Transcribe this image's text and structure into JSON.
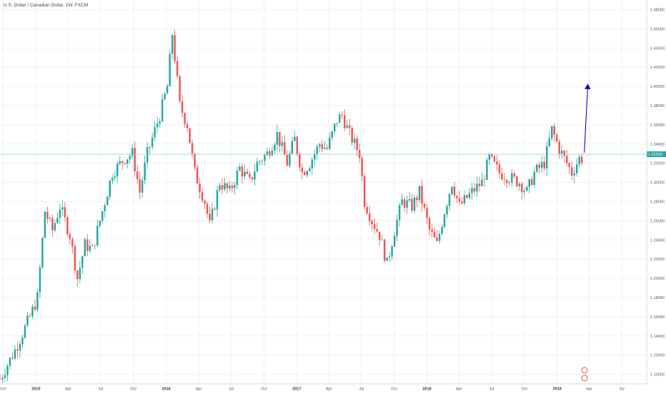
{
  "chart_data": {
    "type": "candlestick",
    "title": "U.S. Dollar / Canadian Dollar, 1W, FXCM",
    "last_price_label": "1.32930",
    "last_price": 1.3293,
    "ylim": [
      1.09,
      1.49
    ],
    "y_ticks": [
      1.1,
      1.12,
      1.14,
      1.16,
      1.18,
      1.2,
      1.22,
      1.24,
      1.26,
      1.28,
      1.3,
      1.32,
      1.34,
      1.36,
      1.38,
      1.4,
      1.42,
      1.44,
      1.46,
      1.48
    ],
    "y_tick_labels": [
      "1.10000",
      "1.12000",
      "1.14000",
      "1.16000",
      "1.18000",
      "1.20000",
      "1.22000",
      "1.24000",
      "1.26000",
      "1.28000",
      "1.30000",
      "1.32000",
      "1.34000",
      "1.36000",
      "1.38000",
      "1.40000",
      "1.42000",
      "1.44000",
      "1.46000",
      "1.48000"
    ],
    "x_ticks": [
      {
        "label": "Oct",
        "date": "2014-10-01"
      },
      {
        "label": "2015",
        "date": "2015-01-01"
      },
      {
        "label": "Apr",
        "date": "2015-04-01"
      },
      {
        "label": "Jul",
        "date": "2015-07-01"
      },
      {
        "label": "Oct",
        "date": "2015-10-01"
      },
      {
        "label": "2016",
        "date": "2016-01-01"
      },
      {
        "label": "Apr",
        "date": "2016-04-01"
      },
      {
        "label": "Jul",
        "date": "2016-07-01"
      },
      {
        "label": "Oct",
        "date": "2016-10-01"
      },
      {
        "label": "2017",
        "date": "2017-01-01"
      },
      {
        "label": "Apr",
        "date": "2017-04-01"
      },
      {
        "label": "Jul",
        "date": "2017-07-01"
      },
      {
        "label": "Oct",
        "date": "2017-10-01"
      },
      {
        "label": "2018",
        "date": "2018-01-01"
      },
      {
        "label": "Apr",
        "date": "2018-04-01"
      },
      {
        "label": "Jul",
        "date": "2018-07-01"
      },
      {
        "label": "Oct",
        "date": "2018-10-01"
      },
      {
        "label": "2019",
        "date": "2019-01-01"
      },
      {
        "label": "Apr",
        "date": "2019-04-01"
      },
      {
        "label": "Jul",
        "date": "2019-07-01"
      }
    ],
    "xlim": [
      "2014-09-22",
      "2019-09-09"
    ],
    "colors": {
      "up": "#26a69a",
      "down": "#ef5350",
      "grid": "#eef1f4",
      "price_line": "#7fd1c5",
      "price_label_bg": "#26a69a",
      "arrow": "#2200bb",
      "text": "#555555"
    },
    "bar_period": "1W",
    "price_path": [
      [
        "2014-09-22",
        1.095
      ],
      [
        "2014-11-03",
        1.125
      ],
      [
        "2014-12-15",
        1.16
      ],
      [
        "2015-01-05",
        1.18
      ],
      [
        "2015-01-26",
        1.27
      ],
      [
        "2015-02-16",
        1.25
      ],
      [
        "2015-03-09",
        1.275
      ],
      [
        "2015-04-06",
        1.245
      ],
      [
        "2015-04-27",
        1.2
      ],
      [
        "2015-05-18",
        1.235
      ],
      [
        "2015-06-08",
        1.23
      ],
      [
        "2015-07-06",
        1.27
      ],
      [
        "2015-08-03",
        1.31
      ],
      [
        "2015-09-07",
        1.325
      ],
      [
        "2015-09-28",
        1.33
      ],
      [
        "2015-10-19",
        1.29
      ],
      [
        "2015-11-09",
        1.33
      ],
      [
        "2015-12-14",
        1.37
      ],
      [
        "2016-01-04",
        1.4
      ],
      [
        "2016-01-18",
        1.455
      ],
      [
        "2016-02-08",
        1.38
      ],
      [
        "2016-02-29",
        1.36
      ],
      [
        "2016-03-21",
        1.31
      ],
      [
        "2016-04-18",
        1.28
      ],
      [
        "2016-05-02",
        1.255
      ],
      [
        "2016-05-30",
        1.3
      ],
      [
        "2016-06-27",
        1.29
      ],
      [
        "2016-07-25",
        1.315
      ],
      [
        "2016-08-22",
        1.3
      ],
      [
        "2016-09-12",
        1.32
      ],
      [
        "2016-10-10",
        1.33
      ],
      [
        "2016-11-07",
        1.35
      ],
      [
        "2016-12-05",
        1.32
      ],
      [
        "2016-12-26",
        1.345
      ],
      [
        "2017-01-16",
        1.31
      ],
      [
        "2017-02-06",
        1.32
      ],
      [
        "2017-03-06",
        1.34
      ],
      [
        "2017-03-27",
        1.335
      ],
      [
        "2017-04-24",
        1.365
      ],
      [
        "2017-05-08",
        1.37
      ],
      [
        "2017-05-29",
        1.35
      ],
      [
        "2017-06-26",
        1.33
      ],
      [
        "2017-07-10",
        1.28
      ],
      [
        "2017-07-31",
        1.26
      ],
      [
        "2017-08-21",
        1.245
      ],
      [
        "2017-09-11",
        1.215
      ],
      [
        "2017-10-02",
        1.25
      ],
      [
        "2017-10-23",
        1.28
      ],
      [
        "2017-11-20",
        1.275
      ],
      [
        "2017-12-11",
        1.29
      ],
      [
        "2018-01-08",
        1.25
      ],
      [
        "2018-01-29",
        1.235
      ],
      [
        "2018-02-19",
        1.27
      ],
      [
        "2018-03-12",
        1.3
      ],
      [
        "2018-04-02",
        1.275
      ],
      [
        "2018-05-07",
        1.29
      ],
      [
        "2018-06-04",
        1.3
      ],
      [
        "2018-06-25",
        1.325
      ],
      [
        "2018-07-23",
        1.31
      ],
      [
        "2018-08-20",
        1.305
      ],
      [
        "2018-09-17",
        1.3
      ],
      [
        "2018-10-08",
        1.29
      ],
      [
        "2018-10-29",
        1.31
      ],
      [
        "2018-11-26",
        1.32
      ],
      [
        "2018-12-17",
        1.355
      ],
      [
        "2019-01-07",
        1.335
      ],
      [
        "2019-01-28",
        1.32
      ],
      [
        "2019-02-11",
        1.31
      ],
      [
        "2019-03-04",
        1.325
      ]
    ],
    "annotation_arrow": {
      "start": [
        "2019-03-18",
        1.331
      ],
      "end": [
        "2019-03-28",
        1.402
      ]
    }
  }
}
